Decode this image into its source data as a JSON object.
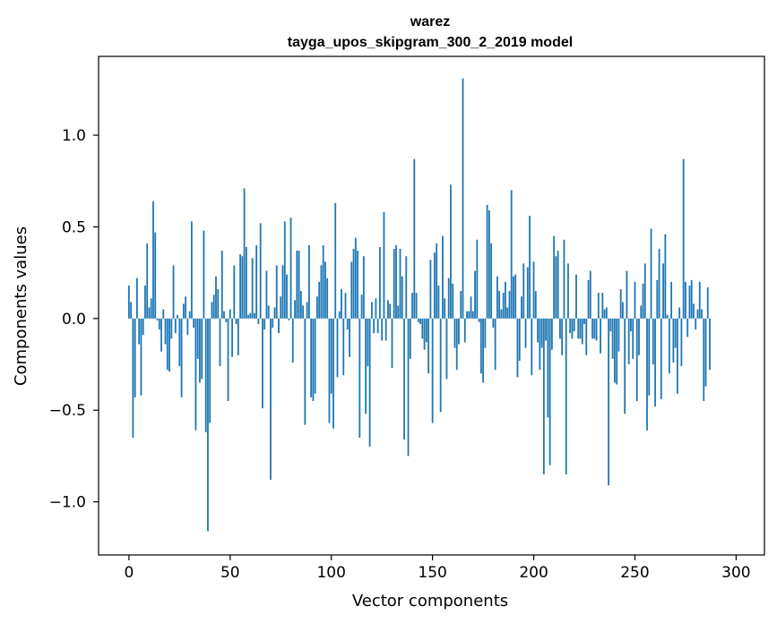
{
  "chart_data": {
    "type": "bar",
    "title": "warez",
    "subtitle": "tayga_upos_skipgram_300_2_2019 model",
    "xlabel": "Vector components",
    "ylabel": "Components values",
    "xlim": [
      -15,
      314
    ],
    "ylim": [
      -1.29,
      1.43
    ],
    "xticks": [
      0,
      50,
      100,
      150,
      200,
      250,
      300
    ],
    "yticks": [
      -1.0,
      -0.5,
      0.0,
      0.5,
      1.0
    ],
    "ytick_labels": [
      "−1.0",
      "−0.5",
      "0.0",
      "0.5",
      "1.0"
    ],
    "color": "#1f77b4",
    "values": [
      0.18,
      0.09,
      -0.65,
      -0.43,
      0.22,
      -0.14,
      -0.42,
      -0.09,
      0.18,
      0.41,
      0.06,
      0.11,
      0.64,
      0.47,
      -0.01,
      -0.06,
      -0.18,
      0.05,
      -0.14,
      -0.28,
      -0.29,
      -0.11,
      0.29,
      -0.08,
      0.02,
      -0.26,
      -0.43,
      0.08,
      0.12,
      -0.09,
      0.04,
      0.53,
      -0.05,
      -0.61,
      -0.22,
      -0.35,
      -0.33,
      0.48,
      -0.62,
      -1.16,
      -0.57,
      0.09,
      0.13,
      0.23,
      0.16,
      -0.26,
      0.37,
      0.04,
      -0.02,
      -0.45,
      0.05,
      -0.21,
      0.29,
      -0.03,
      -0.2,
      0.35,
      0.34,
      0.71,
      0.39,
      0.02,
      0.03,
      0.33,
      0.03,
      0.4,
      -0.03,
      0.52,
      -0.49,
      -0.06,
      0.26,
      0.07,
      -0.88,
      -0.05,
      0.06,
      0.29,
      -0.08,
      0.12,
      0.29,
      0.53,
      0.24,
      -0.01,
      0.55,
      -0.24,
      0.1,
      0.37,
      0.37,
      0.15,
      0.07,
      -0.58,
      0.09,
      0.4,
      -0.43,
      -0.45,
      -0.41,
      0.12,
      0.2,
      0.29,
      0.4,
      0.31,
      0.22,
      -0.57,
      -0.41,
      -0.6,
      0.63,
      -0.32,
      0.04,
      0.16,
      -0.31,
      0.14,
      -0.06,
      -0.21,
      0.31,
      0.38,
      0.44,
      0.37,
      -0.65,
      0.13,
      0.34,
      -0.52,
      -0.26,
      -0.7,
      0.09,
      -0.08,
      0.11,
      -0.08,
      0.39,
      -0.12,
      0.58,
      -0.12,
      0.1,
      0.08,
      -0.27,
      0.38,
      0.4,
      0.07,
      0.38,
      0.23,
      -0.66,
      0.34,
      -0.75,
      -0.22,
      0.14,
      0.87,
      0.14,
      -0.02,
      -0.03,
      -0.11,
      -0.17,
      -0.13,
      -0.3,
      0.32,
      -0.57,
      0.36,
      0.41,
      0.18,
      -0.51,
      0.45,
      0.11,
      -0.33,
      0.22,
      0.73,
      0.19,
      -0.16,
      -0.28,
      -0.14,
      0.15,
      1.31,
      -0.13,
      0.04,
      0.04,
      0.12,
      0.04,
      0.26,
      0.43,
      -0.02,
      -0.3,
      -0.35,
      -0.16,
      0.62,
      0.59,
      0.41,
      -0.05,
      -0.28,
      0.23,
      0.15,
      0.05,
      0.14,
      0.2,
      0.06,
      0.15,
      0.7,
      0.23,
      0.24,
      -0.32,
      -0.23,
      0.12,
      0.3,
      -0.16,
      0.28,
      0.56,
      -0.31,
      0.31,
      0.15,
      -0.13,
      -0.28,
      -0.16,
      -0.85,
      -0.12,
      -0.54,
      -0.8,
      -0.17,
      0.45,
      0.34,
      0.37,
      -0.11,
      -0.2,
      0.43,
      -0.85,
      0.3,
      -0.08,
      -0.11,
      -0.07,
      0.24,
      -0.11,
      -0.11,
      -0.14,
      -0.03,
      -0.2,
      0.21,
      0.26,
      -0.11,
      -0.11,
      -0.12,
      0.14,
      -0.19,
      0.14,
      0.05,
      0.06,
      -0.91,
      -0.07,
      -0.22,
      -0.35,
      -0.36,
      -0.18,
      0.16,
      0.09,
      -0.52,
      0.26,
      -0.25,
      -0.07,
      -0.22,
      0.2,
      -0.45,
      -0.2,
      0.07,
      0.19,
      0.3,
      -0.61,
      -0.42,
      0.49,
      -0.25,
      -0.48,
      0.21,
      0.38,
      -0.44,
      0.3,
      0.46,
      0.02,
      -0.3,
      0.2,
      -0.24,
      -0.16,
      -0.41,
      0.06,
      -0.26,
      0.87,
      0.2,
      -0.1,
      0.18,
      0.21,
      0.08,
      -0.06,
      0.05,
      0.2,
      0.05,
      -0.45,
      -0.37,
      0.17,
      -0.28
    ]
  }
}
